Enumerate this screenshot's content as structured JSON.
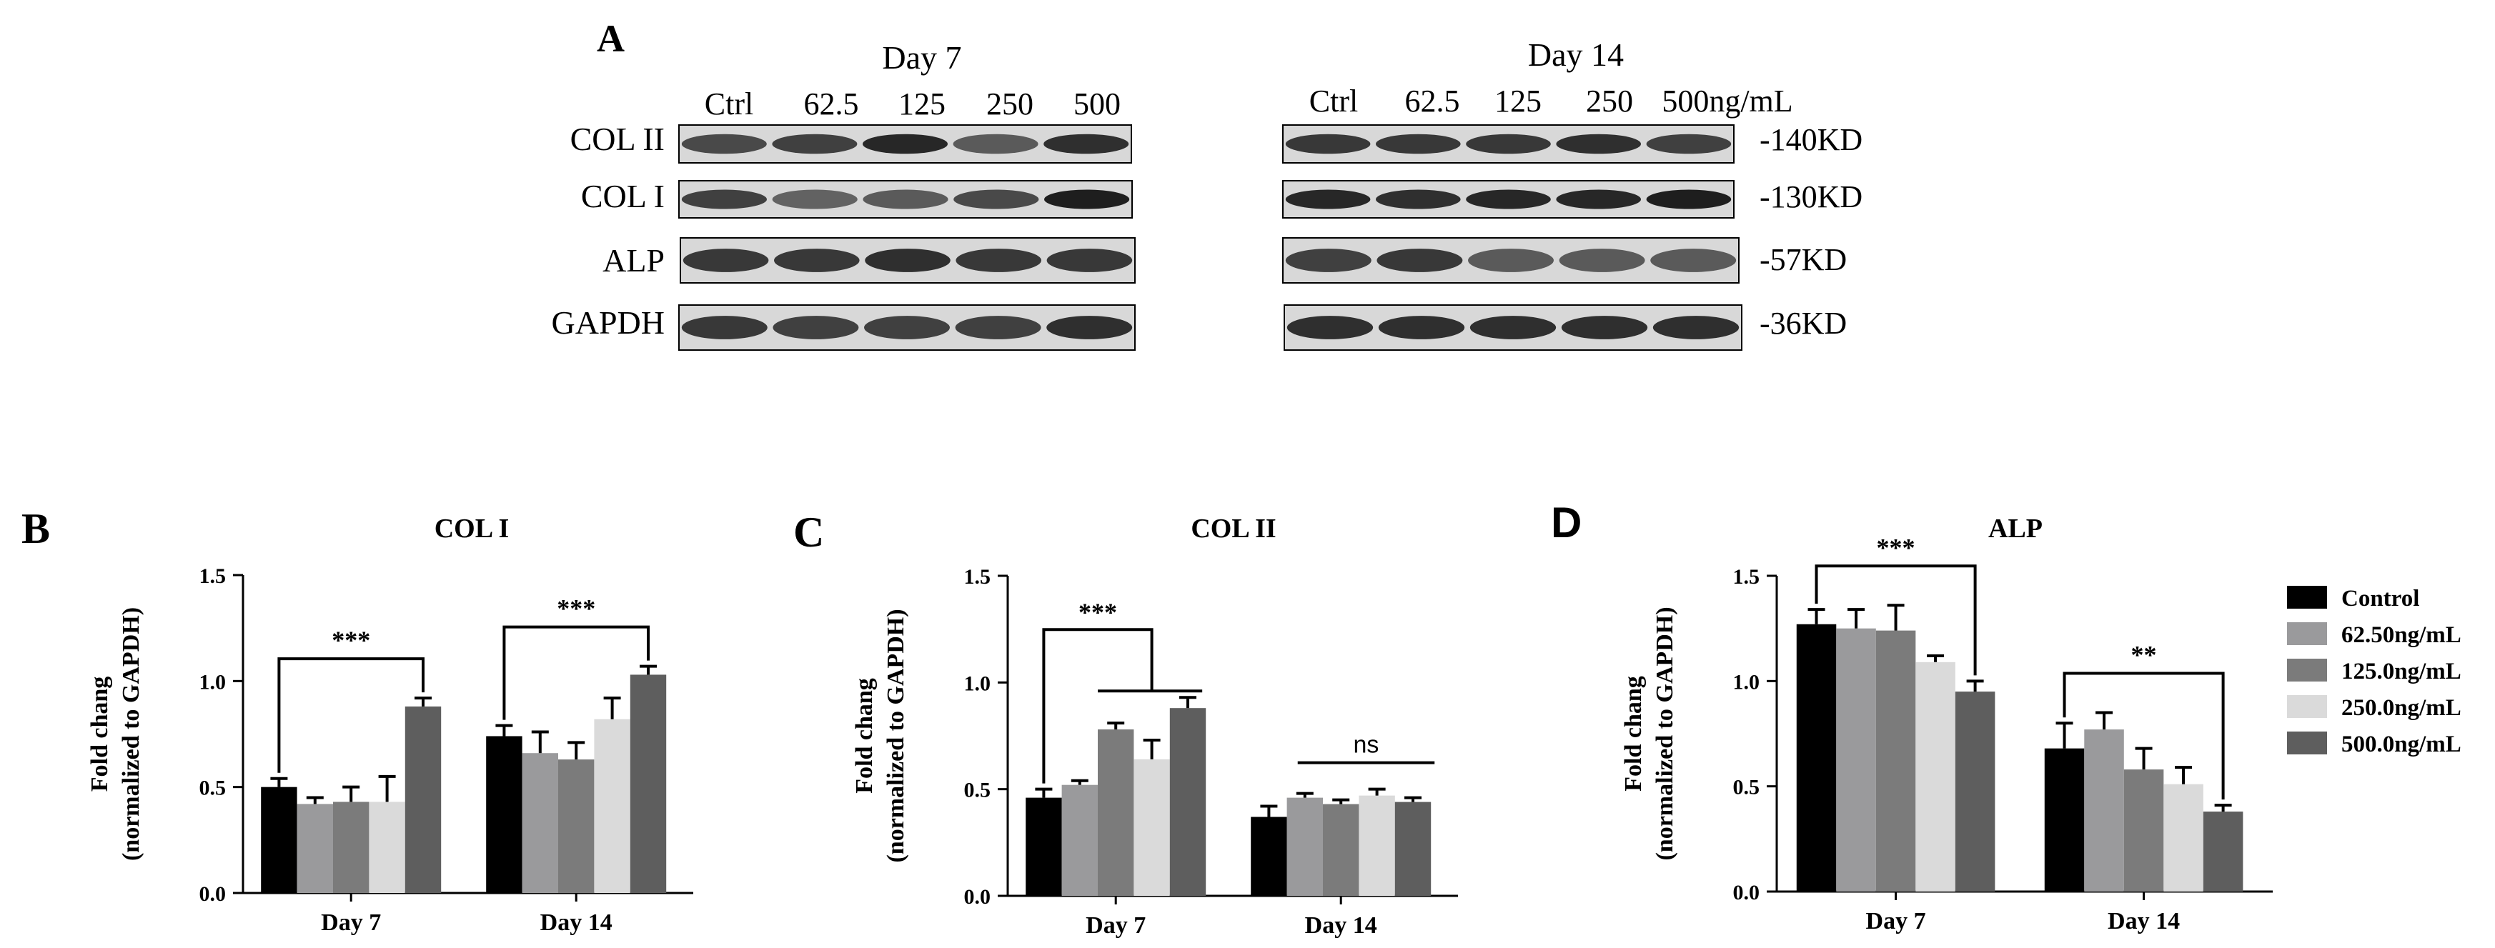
{
  "panels": {
    "A": "A",
    "B": "B",
    "C": "C",
    "D": "D"
  },
  "blot": {
    "day7": {
      "title": "Day 7",
      "lanes": [
        "Ctrl",
        "62.5",
        "125",
        "250",
        "500"
      ]
    },
    "day14": {
      "title": "Day 14",
      "lanes": [
        "Ctrl",
        "62.5",
        "125",
        "250",
        "500ng/mL"
      ]
    },
    "rows": [
      {
        "label": "COL II",
        "size": "-140KD",
        "intensity7": [
          0.75,
          0.8,
          0.95,
          0.65,
          0.9
        ],
        "intensity14": [
          0.85,
          0.85,
          0.85,
          0.9,
          0.8
        ]
      },
      {
        "label": "COL I",
        "size": "-130KD",
        "intensity7": [
          0.8,
          0.6,
          0.65,
          0.75,
          1.0
        ],
        "intensity14": [
          0.95,
          0.9,
          0.95,
          0.95,
          1.0
        ]
      },
      {
        "label": "ALP",
        "size": "-57KD",
        "intensity7": [
          0.85,
          0.85,
          0.9,
          0.85,
          0.85
        ],
        "intensity14": [
          0.8,
          0.85,
          0.65,
          0.65,
          0.65
        ]
      },
      {
        "label": "GAPDH",
        "size": "-36KD",
        "intensity7": [
          0.85,
          0.8,
          0.8,
          0.8,
          0.9
        ],
        "intensity14": [
          0.9,
          0.9,
          0.9,
          0.9,
          0.9
        ]
      }
    ]
  },
  "legend": {
    "entries": [
      "Control",
      "62.50ng/mL",
      "125.0ng/mL",
      "250.0ng/mL",
      "500.0ng/mL"
    ],
    "colors": [
      "#000000",
      "#9a9a9c",
      "#7b7b7b",
      "#dadada",
      "#5e5e5e"
    ]
  },
  "chart_data": [
    {
      "type": "bar",
      "title": "COL I",
      "ylabel": "Fold chang",
      "ylabel2": "(normalized to GAPDH)",
      "ylim": [
        0,
        1.5
      ],
      "yticks": [
        "0.0",
        "0.5",
        "1.0",
        "1.5"
      ],
      "categories": [
        "Day 7",
        "Day 14"
      ],
      "series": [
        {
          "name": "Control",
          "values": [
            0.5,
            0.74
          ],
          "errors": [
            0.04,
            0.05
          ]
        },
        {
          "name": "62.50ng/mL",
          "values": [
            0.42,
            0.66
          ],
          "errors": [
            0.03,
            0.1
          ]
        },
        {
          "name": "125.0ng/mL",
          "values": [
            0.43,
            0.63
          ],
          "errors": [
            0.07,
            0.08
          ]
        },
        {
          "name": "250.0ng/mL",
          "values": [
            0.43,
            0.82
          ],
          "errors": [
            0.12,
            0.1
          ]
        },
        {
          "name": "500.0ng/mL",
          "values": [
            0.88,
            1.03
          ],
          "errors": [
            0.04,
            0.04
          ]
        }
      ],
      "annotations": [
        "***",
        "***"
      ]
    },
    {
      "type": "bar",
      "title": "COL II",
      "ylabel": "Fold chang",
      "ylabel2": "(normalized to GAPDH)",
      "ylim": [
        0,
        1.5
      ],
      "yticks": [
        "0.0",
        "0.5",
        "1.0",
        "1.5"
      ],
      "categories": [
        "Day 7",
        "Day 14"
      ],
      "series": [
        {
          "name": "Control",
          "values": [
            0.46,
            0.37
          ],
          "errors": [
            0.04,
            0.05
          ]
        },
        {
          "name": "62.50ng/mL",
          "values": [
            0.52,
            0.46
          ],
          "errors": [
            0.02,
            0.02
          ]
        },
        {
          "name": "125.0ng/mL",
          "values": [
            0.78,
            0.43
          ],
          "errors": [
            0.03,
            0.02
          ]
        },
        {
          "name": "250.0ng/mL",
          "values": [
            0.64,
            0.47
          ],
          "errors": [
            0.09,
            0.03
          ]
        },
        {
          "name": "500.0ng/mL",
          "values": [
            0.88,
            0.44
          ],
          "errors": [
            0.05,
            0.02
          ]
        }
      ],
      "annotations": [
        "***",
        "ns"
      ]
    },
    {
      "type": "bar",
      "title": "ALP",
      "ylabel": "Fold chang",
      "ylabel2": "(normalized to GAPDH)",
      "ylim": [
        0,
        1.5
      ],
      "yticks": [
        "0.0",
        "0.5",
        "1.0",
        "1.5"
      ],
      "categories": [
        "Day 7",
        "Day 14"
      ],
      "series": [
        {
          "name": "Control",
          "values": [
            1.27,
            0.68
          ],
          "errors": [
            0.07,
            0.12
          ]
        },
        {
          "name": "62.50ng/mL",
          "values": [
            1.25,
            0.77
          ],
          "errors": [
            0.09,
            0.08
          ]
        },
        {
          "name": "125.0ng/mL",
          "values": [
            1.24,
            0.58
          ],
          "errors": [
            0.12,
            0.1
          ]
        },
        {
          "name": "250.0ng/mL",
          "values": [
            1.09,
            0.51
          ],
          "errors": [
            0.03,
            0.08
          ]
        },
        {
          "name": "500.0ng/mL",
          "values": [
            0.95,
            0.38
          ],
          "errors": [
            0.05,
            0.03
          ]
        }
      ],
      "annotations": [
        "***",
        "**"
      ]
    }
  ]
}
